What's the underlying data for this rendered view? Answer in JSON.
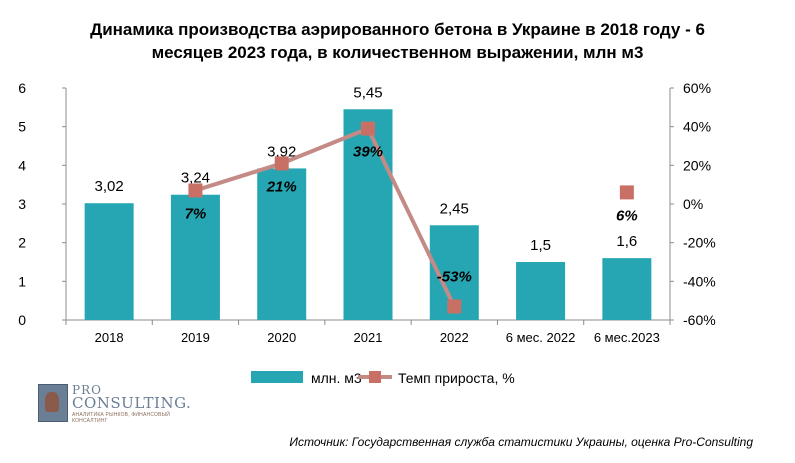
{
  "title_line1": "Динамика производства аэрированного бетона в Украине в 2018 году - 6",
  "title_line2": "месяцев 2023 года, в количественном выражении, млн м3",
  "source": "Источник: Государственная служба статистики Украины, оценка Pro-Consulting",
  "logo": {
    "line1": "PRO",
    "line2": "CONSULTING.",
    "tagline": "АНАЛИТИКА РЫНКОВ, ФИНАНСОВЫЙ КОНСАЛТИНГ"
  },
  "colors": {
    "bar": "#26a6b2",
    "line": "#c48a86",
    "marker": "#c97066",
    "axis": "#8c8c8c"
  },
  "chart_data": {
    "type": "bar",
    "title": "Динамика производства аэрированного бетона в Украине в 2018 году - 6 месяцев 2023 года, в количественном выражении, млн м3",
    "categories": [
      "2018",
      "2019",
      "2020",
      "2021",
      "2022",
      "6 мес. 2022",
      "6 мес.2023"
    ],
    "series": [
      {
        "name": "млн. м3",
        "type": "bar",
        "axis": "left",
        "values": [
          3.02,
          3.24,
          3.92,
          5.45,
          2.45,
          1.5,
          1.6
        ],
        "labels": [
          "3,02",
          "3,24",
          "3,92",
          "5,45",
          "2,45",
          "1,5",
          "1,6"
        ]
      },
      {
        "name": "Темп прироста, %",
        "type": "line",
        "axis": "right",
        "values": [
          null,
          7,
          21,
          39,
          -53,
          null,
          6
        ],
        "labels": [
          "",
          "7%",
          "21%",
          "39%",
          "-53%",
          "",
          "6%"
        ]
      }
    ],
    "ylim": [
      0,
      6
    ],
    "yticks": [
      "0",
      "1",
      "2",
      "3",
      "4",
      "5",
      "6"
    ],
    "y2lim": [
      -60,
      60
    ],
    "y2ticks": [
      "-60%",
      "-40%",
      "-20%",
      "0%",
      "20%",
      "40%",
      "60%"
    ],
    "grid": false,
    "legend": "bottom"
  }
}
